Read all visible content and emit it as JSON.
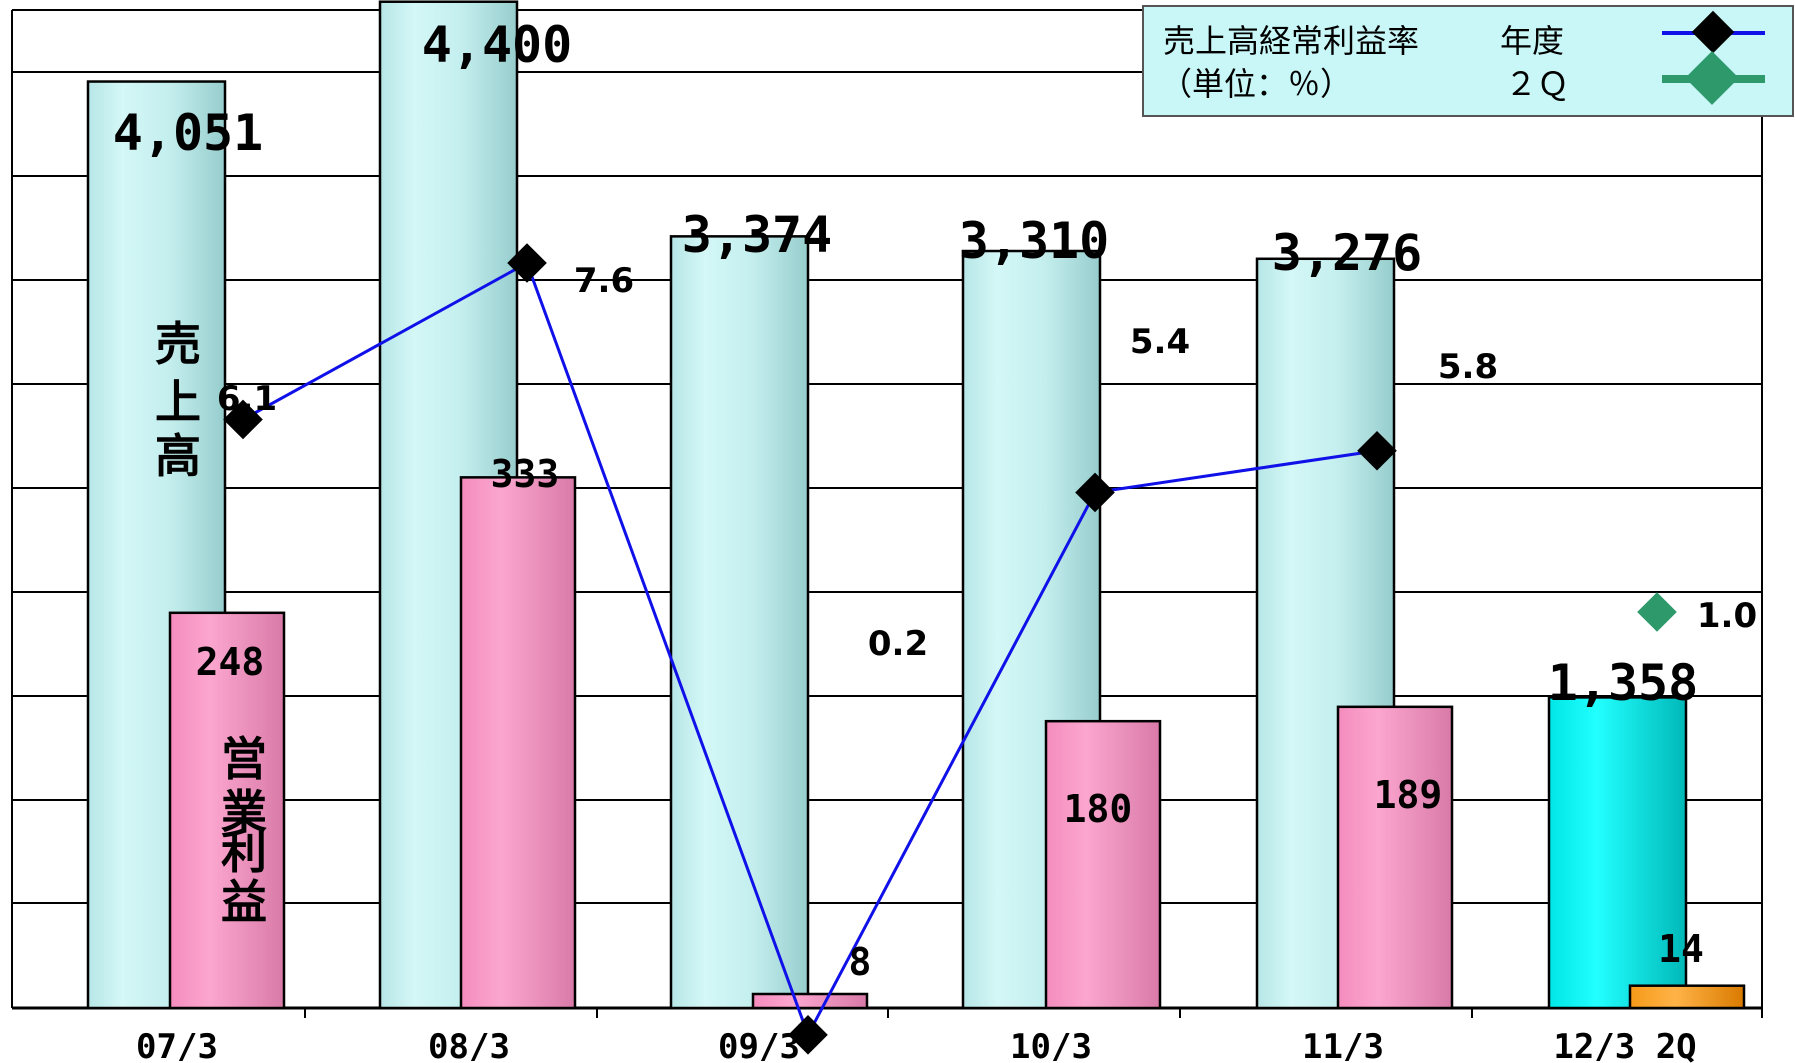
{
  "chart_data": {
    "type": "bar",
    "categories": [
      "07/3",
      "08/3",
      "09/3",
      "10/3",
      "11/3",
      "12/3 2Q"
    ],
    "sales": {
      "values": [
        4051,
        4400,
        3374,
        3310,
        3276,
        1358
      ],
      "labels": [
        "4,051",
        "4,400",
        "3,374",
        "3,310",
        "3,276",
        "1,358"
      ]
    },
    "operating_profit": {
      "values": [
        248,
        333,
        8,
        180,
        189,
        14
      ],
      "labels": [
        "248",
        "333",
        "8",
        "180",
        "189",
        "14"
      ]
    },
    "margin": {
      "annual": [
        6.1,
        7.6,
        0.2,
        5.4,
        5.8
      ],
      "annual_labels": [
        "6.1",
        "7.6",
        "0.2",
        "5.4",
        "5.8"
      ],
      "q2": 1.0,
      "q2_label": "1.0"
    },
    "vertical_labels": {
      "sales": [
        "売",
        "上",
        "高"
      ],
      "profit": [
        "営",
        "業",
        "利",
        "益"
      ]
    },
    "legend": {
      "title": "売上高経常利益率",
      "unit": "（単位：％）",
      "annual": "年度",
      "q2": "２Ｑ"
    },
    "colors": {
      "sales_bar": "#c4eeee",
      "sales_bar_q2": "#00f0f0",
      "profit_bar": "#f797c5",
      "profit_bar_q2": "#f7960f",
      "margin_line": "#1010e8",
      "q2_marker": "#2e9a6c",
      "legend_bg": "#c9f7f7"
    },
    "grid": true
  }
}
